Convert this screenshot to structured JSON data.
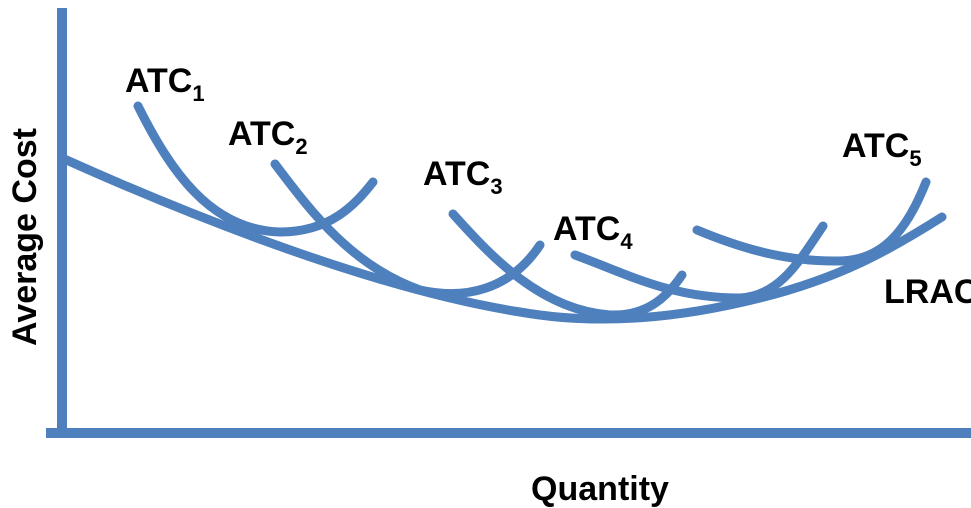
{
  "diagram": {
    "axes": {
      "y_label": "Average Cost",
      "x_label": "Quantity"
    },
    "colors": {
      "curve": "#4E80BD",
      "axis": "#4E80BD",
      "text": "#000000"
    },
    "curves": [
      {
        "id": "atc1",
        "label": "ATC",
        "subscript": "1"
      },
      {
        "id": "atc2",
        "label": "ATC",
        "subscript": "2"
      },
      {
        "id": "atc3",
        "label": "ATC",
        "subscript": "3"
      },
      {
        "id": "atc4",
        "label": "ATC",
        "subscript": "4"
      },
      {
        "id": "atc5",
        "label": "ATC",
        "subscript": "5"
      },
      {
        "id": "lrac",
        "label": "LRAC",
        "subscript": ""
      }
    ]
  }
}
